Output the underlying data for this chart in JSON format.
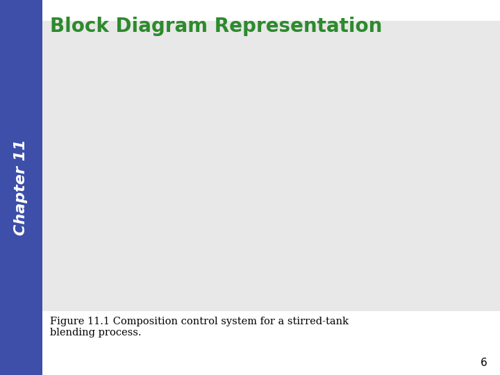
{
  "title": "Block Diagram Representation",
  "title_color": "#2d8a2d",
  "title_fontsize": 20,
  "chapter_text": "Chapter 11",
  "chapter_bg": "#3d4fa8",
  "chapter_text_color": "white",
  "figure_caption": "Figure 11.1 Composition control system for a stirred-tank\nblending process.",
  "page_number": "6",
  "slide_bg": "#ffffff",
  "diagram_bg": "#e8e8e8"
}
